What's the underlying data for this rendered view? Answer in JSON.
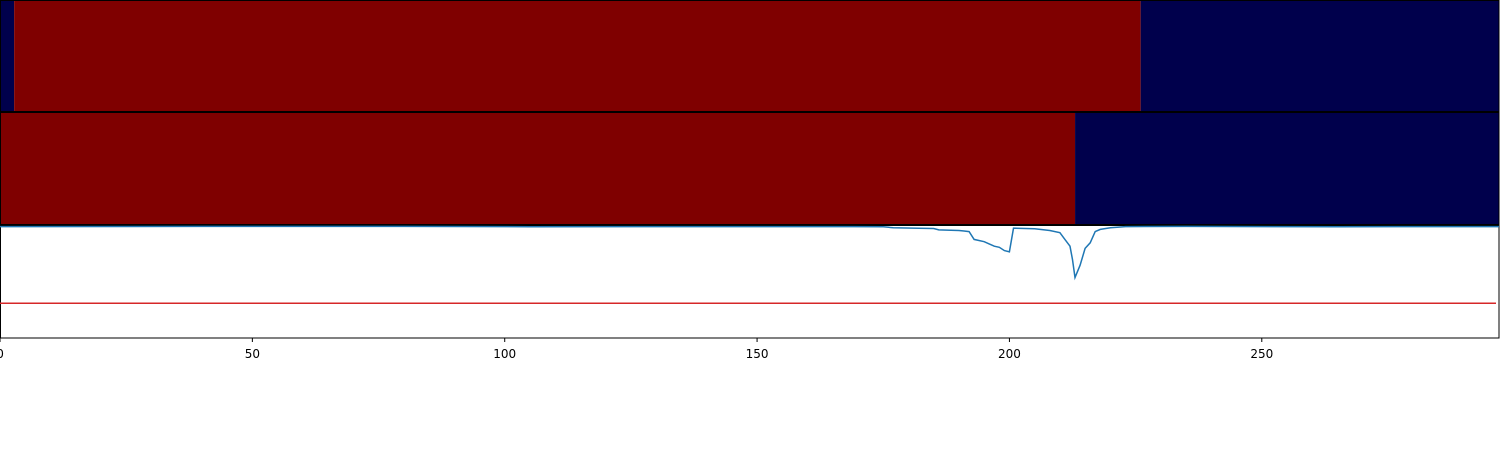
{
  "chart_data": [
    {
      "type": "heatmap",
      "title": "",
      "xlim": [
        0,
        297
      ],
      "segments": [
        {
          "start": 0,
          "end": 2.8,
          "color": "#00004c"
        },
        {
          "start": 2.8,
          "end": 226,
          "color": "#7f0000"
        },
        {
          "start": 226,
          "end": 297,
          "color": "#00004c"
        }
      ]
    },
    {
      "type": "heatmap",
      "title": "",
      "xlim": [
        0,
        297
      ],
      "segments": [
        {
          "start": 0,
          "end": 213,
          "color": "#7f0000"
        },
        {
          "start": 213,
          "end": 297,
          "color": "#00004c"
        }
      ]
    },
    {
      "type": "line",
      "title": "",
      "xlabel": "",
      "ylabel": "",
      "xlim": [
        0,
        297
      ],
      "ylim": [
        -1.0,
        0.0
      ],
      "xticks": [
        0,
        50,
        100,
        150,
        200,
        250
      ],
      "series": [
        {
          "color": "#1f77b4",
          "points": [
            [
              0,
              -0.005
            ],
            [
              40,
              -0.004
            ],
            [
              80,
              -0.004
            ],
            [
              105,
              -0.006
            ],
            [
              140,
              -0.005
            ],
            [
              169,
              -0.005
            ],
            [
              175,
              -0.007
            ],
            [
              177,
              -0.015
            ],
            [
              182,
              -0.02
            ],
            [
              185,
              -0.022
            ],
            [
              186,
              -0.035
            ],
            [
              190,
              -0.04
            ],
            [
              191,
              -0.045
            ],
            [
              192,
              -0.05
            ],
            [
              193,
              -0.12
            ],
            [
              195,
              -0.14
            ],
            [
              196,
              -0.16
            ],
            [
              197,
              -0.18
            ],
            [
              198,
              -0.19
            ],
            [
              199,
              -0.22
            ],
            [
              200,
              -0.23
            ],
            [
              200.8,
              -0.02
            ],
            [
              205,
              -0.025
            ],
            [
              208,
              -0.04
            ],
            [
              210,
              -0.06
            ],
            [
              211,
              -0.12
            ],
            [
              212,
              -0.18
            ],
            [
              212.5,
              -0.3
            ],
            [
              213,
              -0.46
            ],
            [
              214,
              -0.35
            ],
            [
              215,
              -0.2
            ],
            [
              216,
              -0.15
            ],
            [
              217,
              -0.05
            ],
            [
              218,
              -0.03
            ],
            [
              220,
              -0.015
            ],
            [
              223,
              -0.005
            ],
            [
              235,
              -0.004
            ],
            [
              265,
              -0.006
            ],
            [
              297,
              -0.005
            ]
          ]
        }
      ],
      "threshold": {
        "value": -0.69,
        "color": "#d62728"
      }
    }
  ]
}
